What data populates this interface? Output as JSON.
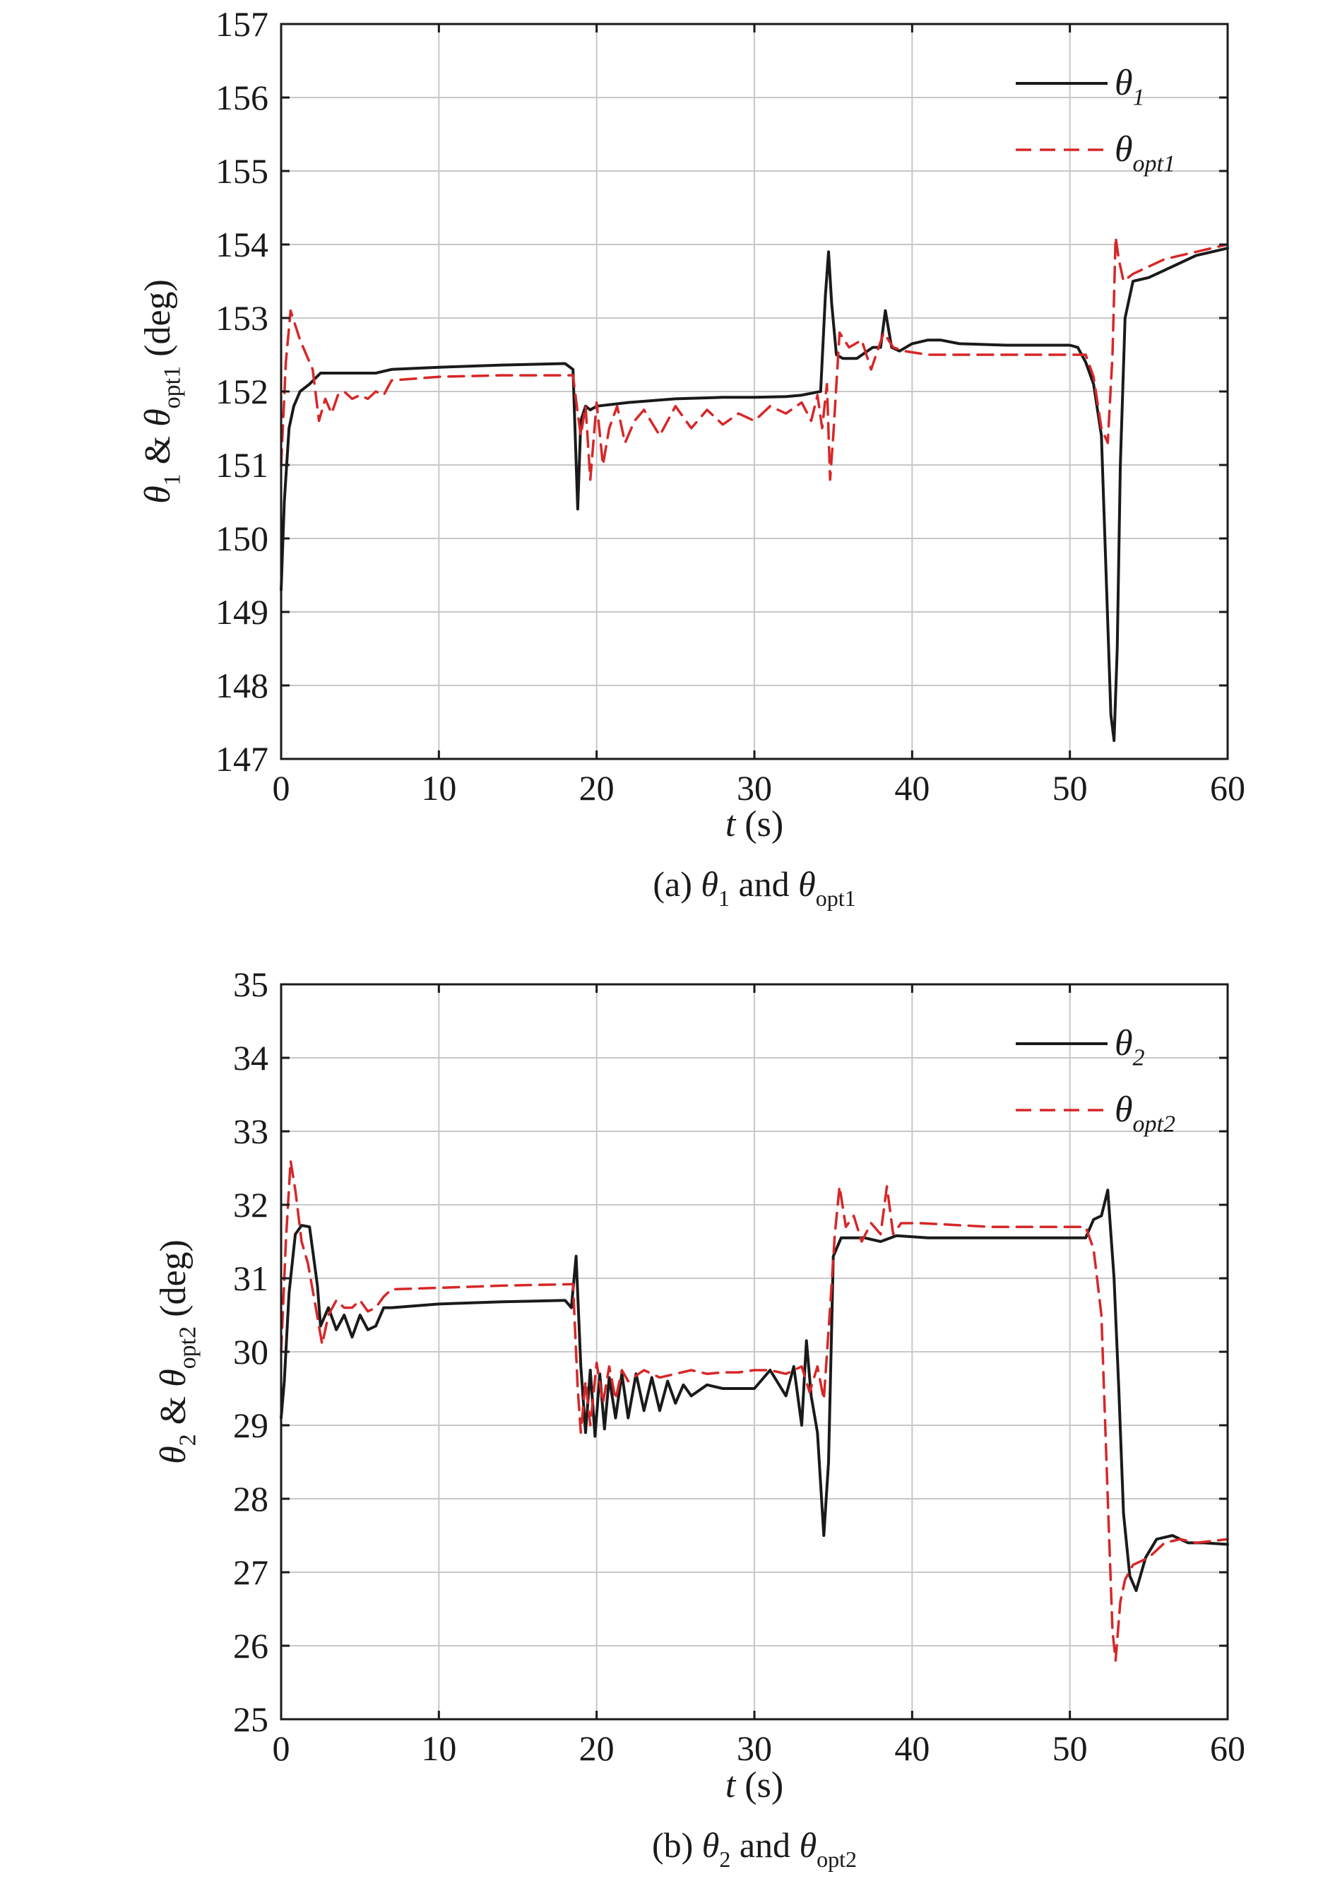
{
  "chart_data": [
    {
      "type": "line",
      "panel": "a",
      "xlabel": "t (s)",
      "ylabel": "θ1 & θopt1 (deg)",
      "caption": "(a) θ1 and θopt1",
      "xlim": [
        0,
        60
      ],
      "ylim": [
        147,
        157
      ],
      "xticks": [
        "0",
        "10",
        "20",
        "30",
        "40",
        "50",
        "60"
      ],
      "yticks": [
        "147",
        "148",
        "149",
        "150",
        "151",
        "152",
        "153",
        "154",
        "155",
        "156",
        "157"
      ],
      "grid": true,
      "legend_position": "top-right",
      "series": [
        {
          "name": "θ1",
          "color": "#1a1a1a",
          "dash": "solid",
          "x": [
            0,
            0.2,
            0.5,
            0.8,
            1.2,
            1.8,
            2.5,
            4,
            6,
            7,
            10,
            14,
            18,
            18.5,
            18.8,
            19.0,
            19.3,
            19.6,
            20,
            22,
            25,
            28,
            30,
            32,
            33,
            34.2,
            34.5,
            34.7,
            34.9,
            35.2,
            35.6,
            36.5,
            37.5,
            38,
            38.3,
            38.7,
            39.2,
            40,
            41,
            41.8,
            43,
            46,
            50,
            50.5,
            51,
            51.5,
            52,
            52.3,
            52.6,
            52.8,
            53.0,
            53.2,
            53.5,
            54,
            55,
            56,
            57,
            58,
            59,
            60
          ],
          "y": [
            149.3,
            150.5,
            151.5,
            151.8,
            152.0,
            152.1,
            152.25,
            152.25,
            152.25,
            152.3,
            152.33,
            152.36,
            152.38,
            152.3,
            150.4,
            151.6,
            151.8,
            151.75,
            151.8,
            151.85,
            151.9,
            151.92,
            151.92,
            151.93,
            151.95,
            152.0,
            153.3,
            153.9,
            153.2,
            152.5,
            152.45,
            152.45,
            152.6,
            152.6,
            153.1,
            152.6,
            152.55,
            152.65,
            152.7,
            152.7,
            152.65,
            152.63,
            152.63,
            152.6,
            152.4,
            152.1,
            151.4,
            149.5,
            147.6,
            147.25,
            148.5,
            151.0,
            153.0,
            153.5,
            153.55,
            153.65,
            153.75,
            153.85,
            153.9,
            153.95
          ]
        },
        {
          "name": "θopt1",
          "color": "#d62728",
          "dash": "dashed",
          "x": [
            0,
            0.3,
            0.6,
            0.9,
            1.2,
            1.6,
            2.0,
            2.4,
            2.8,
            3.2,
            3.6,
            4,
            4.5,
            5,
            5.5,
            6,
            6.5,
            7,
            10,
            14,
            18.5,
            18.8,
            19.0,
            19.3,
            19.6,
            20,
            20.4,
            20.8,
            21.3,
            21.8,
            22.4,
            23,
            24,
            25,
            26,
            27,
            28,
            29,
            30,
            31,
            32,
            33,
            33.6,
            34.0,
            34.3,
            34.6,
            34.8,
            35.0,
            35.4,
            36,
            36.8,
            37.4,
            38.2,
            38.8,
            39.5,
            41,
            45,
            50,
            51,
            51.5,
            52.0,
            52.4,
            52.7,
            52.9,
            53.1,
            53.4,
            54,
            55,
            56,
            58,
            60
          ],
          "y": [
            151.0,
            152.4,
            153.1,
            152.9,
            152.7,
            152.5,
            152.3,
            151.6,
            151.9,
            151.7,
            151.95,
            152.0,
            151.9,
            151.95,
            151.9,
            152.0,
            151.95,
            152.15,
            152.2,
            152.22,
            152.22,
            151.7,
            151.4,
            151.8,
            150.8,
            151.85,
            151.0,
            151.5,
            151.8,
            151.3,
            151.6,
            151.75,
            151.4,
            151.8,
            151.5,
            151.75,
            151.55,
            151.7,
            151.6,
            151.8,
            151.7,
            151.85,
            151.6,
            151.95,
            151.5,
            152.1,
            150.8,
            151.4,
            152.8,
            152.6,
            152.7,
            152.3,
            152.8,
            152.6,
            152.55,
            152.5,
            152.5,
            152.5,
            152.5,
            152.2,
            151.5,
            151.3,
            152.5,
            154.1,
            153.8,
            153.5,
            153.6,
            153.7,
            153.8,
            153.9,
            154.0
          ]
        }
      ]
    },
    {
      "type": "line",
      "panel": "b",
      "xlabel": "t (s)",
      "ylabel": "θ2 & θopt2 (deg)",
      "caption": "(b) θ2 and θopt2",
      "xlim": [
        0,
        60
      ],
      "ylim": [
        25,
        35
      ],
      "xticks": [
        "0",
        "10",
        "20",
        "30",
        "40",
        "50",
        "60"
      ],
      "yticks": [
        "25",
        "26",
        "27",
        "28",
        "29",
        "30",
        "31",
        "32",
        "33",
        "34",
        "35"
      ],
      "grid": true,
      "legend_position": "top-right",
      "series": [
        {
          "name": "θ2",
          "color": "#1a1a1a",
          "dash": "solid",
          "x": [
            0,
            0.2,
            0.5,
            0.9,
            1.3,
            1.8,
            2.3,
            2.5,
            3.0,
            3.5,
            4.0,
            4.5,
            5.0,
            5.5,
            6.0,
            6.5,
            7,
            10,
            14,
            18,
            18.4,
            18.7,
            19.0,
            19.3,
            19.6,
            19.9,
            20.2,
            20.5,
            20.8,
            21.2,
            21.6,
            22.0,
            22.5,
            23.0,
            23.5,
            24.0,
            24.5,
            25.0,
            25.5,
            26.0,
            27,
            28,
            29,
            30,
            31,
            32,
            32.5,
            33.0,
            33.3,
            33.6,
            34.0,
            34.4,
            34.7,
            35.0,
            35.5,
            37,
            38,
            39,
            41,
            45,
            50,
            51,
            51.5,
            52.0,
            52.4,
            52.8,
            53.1,
            53.4,
            53.8,
            54.2,
            54.8,
            55.5,
            56.5,
            57.5,
            58.5,
            60
          ],
          "y": [
            29.1,
            29.6,
            30.8,
            31.6,
            31.72,
            31.7,
            30.9,
            30.35,
            30.6,
            30.3,
            30.5,
            30.2,
            30.5,
            30.3,
            30.35,
            30.6,
            30.6,
            30.65,
            30.68,
            30.7,
            30.6,
            31.3,
            29.8,
            28.9,
            29.75,
            28.85,
            29.7,
            28.95,
            29.65,
            29.1,
            29.7,
            29.1,
            29.7,
            29.2,
            29.65,
            29.2,
            29.6,
            29.3,
            29.55,
            29.4,
            29.55,
            29.5,
            29.5,
            29.5,
            29.75,
            29.4,
            29.8,
            29.0,
            30.15,
            29.4,
            28.9,
            27.5,
            28.5,
            31.3,
            31.55,
            31.55,
            31.5,
            31.58,
            31.55,
            31.55,
            31.55,
            31.55,
            31.8,
            31.85,
            32.2,
            31.0,
            29.5,
            27.8,
            26.95,
            26.75,
            27.2,
            27.45,
            27.5,
            27.4,
            27.4,
            27.38
          ]
        },
        {
          "name": "θopt2",
          "color": "#d62728",
          "dash": "dashed",
          "x": [
            0,
            0.3,
            0.6,
            0.9,
            1.3,
            1.7,
            2.2,
            2.6,
            3.0,
            3.5,
            4.0,
            4.5,
            5.0,
            5.5,
            6.0,
            6.5,
            7,
            10,
            14,
            18.5,
            18.8,
            19.0,
            19.3,
            19.6,
            20.0,
            20.4,
            20.8,
            21.2,
            21.6,
            22,
            23,
            24,
            25,
            26,
            27,
            28,
            29,
            30,
            31,
            32,
            33,
            33.5,
            34.0,
            34.4,
            34.8,
            35.1,
            35.4,
            35.8,
            36.3,
            36.8,
            37.4,
            38.0,
            38.4,
            38.8,
            39.3,
            40.5,
            45,
            50,
            51,
            51.5,
            52.0,
            52.4,
            52.7,
            52.9,
            53.2,
            53.5,
            54.0,
            55,
            56,
            57,
            58,
            60
          ],
          "y": [
            30.0,
            31.5,
            32.6,
            32.2,
            31.5,
            31.2,
            30.6,
            30.1,
            30.5,
            30.7,
            30.6,
            30.6,
            30.7,
            30.55,
            30.6,
            30.75,
            30.85,
            30.87,
            30.9,
            30.92,
            29.5,
            28.9,
            29.6,
            29.0,
            29.85,
            29.3,
            29.8,
            29.35,
            29.75,
            29.6,
            29.75,
            29.65,
            29.7,
            29.75,
            29.7,
            29.72,
            29.72,
            29.75,
            29.75,
            29.7,
            29.8,
            29.45,
            29.8,
            29.35,
            30.6,
            31.6,
            32.25,
            31.7,
            31.85,
            31.5,
            31.75,
            31.6,
            32.25,
            31.6,
            31.75,
            31.75,
            31.7,
            31.7,
            31.7,
            31.4,
            30.5,
            28.0,
            26.2,
            25.8,
            26.6,
            26.9,
            27.1,
            27.2,
            27.4,
            27.45,
            27.4,
            27.45
          ]
        }
      ]
    }
  ]
}
